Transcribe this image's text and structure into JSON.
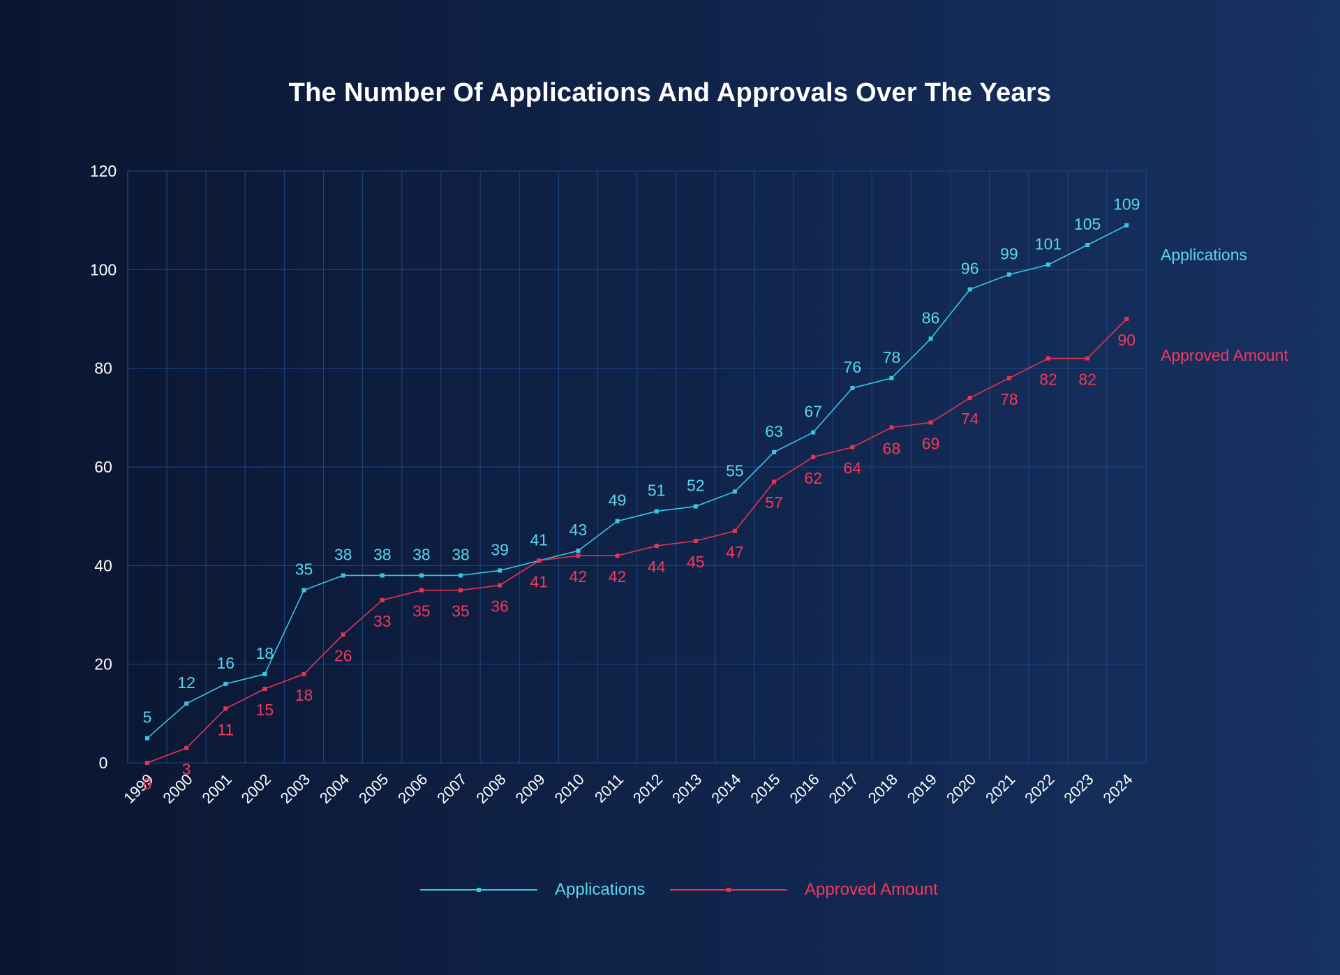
{
  "colors": {
    "applications": "#5ad6ee",
    "approved": "#f2395c",
    "applications_line": "#38c6e6",
    "approved_line": "#e83352",
    "grid": "#1f4d8f",
    "axis_text": "#ffffff"
  },
  "chart_data": {
    "type": "line",
    "title": "The Number Of Applications And Approvals Over The Years",
    "xlabel": "",
    "ylabel": "",
    "categories": [
      "1999",
      "2000",
      "2001",
      "2002",
      "2003",
      "2004",
      "2005",
      "2006",
      "2007",
      "2008",
      "2009",
      "2010",
      "2011",
      "2012",
      "2013",
      "2014",
      "2015",
      "2016",
      "2017",
      "2018",
      "2019",
      "2020",
      "2021",
      "2022",
      "2023",
      "2024"
    ],
    "ylim": [
      0,
      120
    ],
    "yticks": [
      0,
      20,
      40,
      60,
      80,
      100,
      120
    ],
    "grid": true,
    "legend": "bottom-center",
    "series": [
      {
        "name": "Applications",
        "values": [
          5,
          12,
          16,
          18,
          35,
          38,
          38,
          38,
          38,
          39,
          41,
          43,
          49,
          51,
          52,
          55,
          63,
          67,
          76,
          78,
          86,
          96,
          99,
          101,
          105,
          109
        ]
      },
      {
        "name": "Approved Amount",
        "values": [
          0,
          3,
          11,
          15,
          18,
          26,
          33,
          35,
          35,
          36,
          41,
          42,
          42,
          44,
          45,
          47,
          57,
          62,
          64,
          68,
          69,
          74,
          78,
          82,
          82,
          90
        ]
      }
    ]
  }
}
